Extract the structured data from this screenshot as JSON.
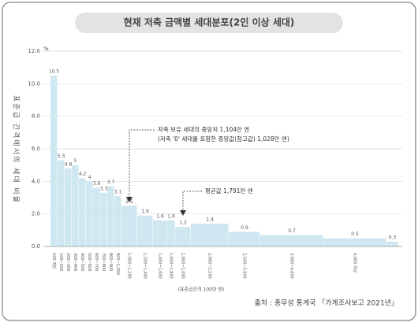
{
  "chart_data": {
    "type": "bar",
    "title": "현재 저축 금액별 세대분포(2인 이상 세대)",
    "y_axis_label": "표준급 간격에서의 세대 비율",
    "y_unit": "%",
    "x_axis_label": "(표준급간격 100만 엔)",
    "source": "출처 : 총무성 통계국 「가계조사보고 2021년」",
    "annotations": [
      {
        "text": "저축 보유 세대의 중앙치 1,104만 엔",
        "subtext": "(저축 '0' 세대를 포함한 중앙값(참고값) 1,028만 엔)"
      },
      {
        "text": "평균값 1,791만 엔"
      }
    ],
    "categories": [
      "100 미만",
      "100~200",
      "200~300",
      "300~400",
      "400~500",
      "500~600",
      "600~700",
      "700~800",
      "800~900",
      "900~1,000",
      "1,000~1,200",
      "1,200~1,400",
      "1,400~1,600",
      "1,600~1,800",
      "1,800~2,000",
      "2,000~2,500",
      "2,500~3,000",
      "3,000~4,000",
      "4,000 이상",
      null
    ],
    "values": [
      10.5,
      5.3,
      4.8,
      5.0,
      4.2,
      4.0,
      3.6,
      3.3,
      3.7,
      3.1,
      2.5,
      1.9,
      1.6,
      1.6,
      1.2,
      1.4,
      0.9,
      0.7,
      0.5,
      0.3
    ],
    "color": "#cfe7f0",
    "ylim": [
      0,
      12
    ],
    "yticks": [
      {
        "value": 0,
        "label": "0.0"
      },
      {
        "value": 2,
        "label": "2.0"
      },
      {
        "value": 4,
        "label": "4.0"
      },
      {
        "value": 6,
        "label": "6.0"
      },
      {
        "value": 8,
        "label": "8.0"
      },
      {
        "value": 10,
        "label": "10.0"
      },
      {
        "value": 12,
        "label": "12.0"
      }
    ],
    "grid": true
  }
}
